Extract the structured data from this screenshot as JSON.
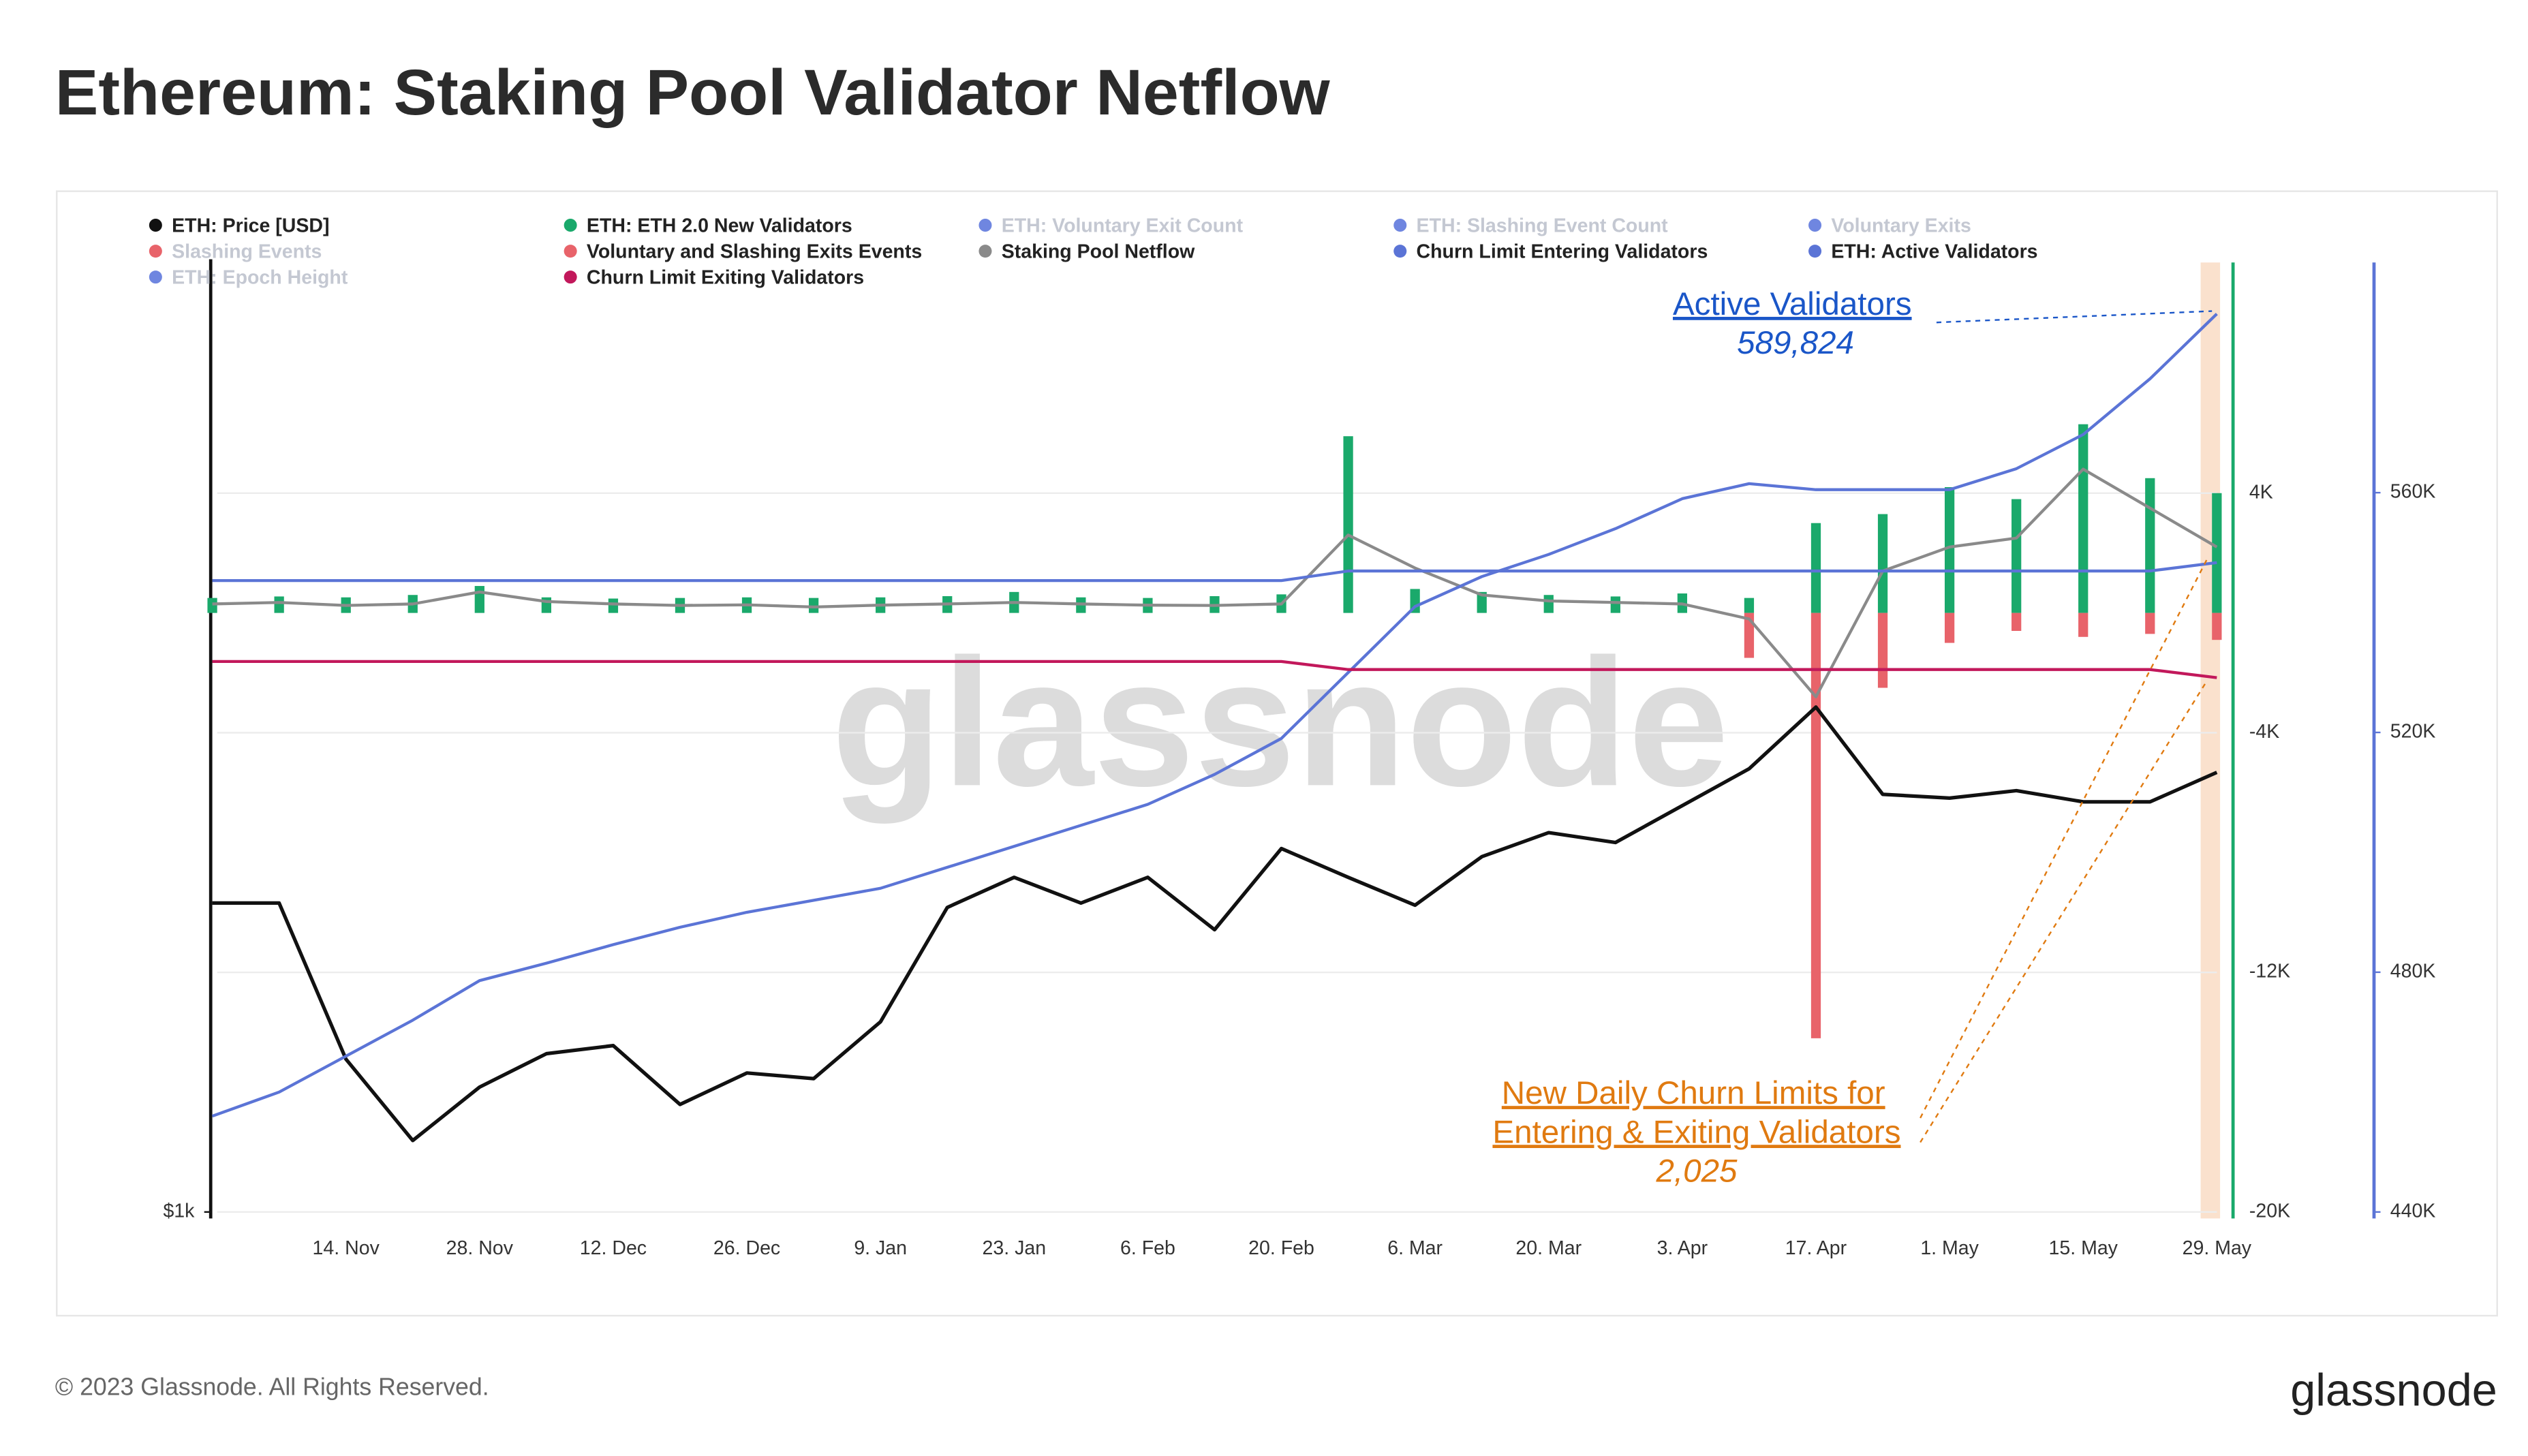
{
  "header": {
    "title": "Ethereum: Staking Pool Validator Netflow"
  },
  "chart_data": {
    "type": "combo",
    "categories": [
      null,
      null,
      "14. Nov",
      null,
      "28. Nov",
      null,
      "12. Dec",
      null,
      "26. Dec",
      null,
      "9. Jan",
      null,
      "23. Jan",
      null,
      "6. Feb",
      null,
      "20. Feb",
      null,
      "6. Mar",
      null,
      "20. Mar",
      null,
      "3. Apr",
      null,
      "17. Apr",
      null,
      "1. May",
      null,
      "15. May",
      null,
      "29. May"
    ],
    "yscale": "log",
    "ylim": [
      1000,
      4000
    ],
    "yticks": [
      {
        "value": 1000,
        "label": "$1k"
      }
    ],
    "y2lim": [
      -20000,
      11700
    ],
    "y2ticks": [
      {
        "value": 4000,
        "label": "4K"
      },
      {
        "value": -4000,
        "label": "-4K"
      },
      {
        "value": -12000,
        "label": "-12K"
      },
      {
        "value": -20000,
        "label": "-20K"
      }
    ],
    "y3lim": [
      440000,
      598400
    ],
    "y3ticks": [
      {
        "value": 560000,
        "label": "560K"
      },
      {
        "value": 520000,
        "label": "520K"
      },
      {
        "value": 480000,
        "label": "480K"
      },
      {
        "value": 440000,
        "label": "440K"
      }
    ],
    "grid": true,
    "series": [
      {
        "name": "ETH: Price [USD]",
        "color": "#111111",
        "type": "line",
        "axis": "y",
        "visible": true,
        "values": [
          1570,
          1570,
          1250,
          1110,
          1200,
          1260,
          1275,
          1170,
          1225,
          1215,
          1320,
          1560,
          1630,
          1570,
          1630,
          1510,
          1700,
          1630,
          1565,
          1680,
          1740,
          1715,
          1810,
          1910,
          2090,
          1840,
          1830,
          1850,
          1820,
          1820,
          1900
        ]
      },
      {
        "name": "ETH: ETH 2.0 New Validators",
        "color": "#1aa96b",
        "type": "bar",
        "axis": "y2",
        "visible": true,
        "values": [
          500,
          550,
          520,
          600,
          900,
          520,
          480,
          500,
          520,
          500,
          520,
          560,
          700,
          520,
          500,
          560,
          620,
          5900,
          800,
          700,
          600,
          550,
          650,
          500,
          3000,
          3300,
          4200,
          3800,
          6300,
          4500,
          4000
        ]
      },
      {
        "name": "ETH: Voluntary Exit Count",
        "color": "#6f86e0",
        "visible": false
      },
      {
        "name": "ETH: Slashing Event Count",
        "color": "#6f86e0",
        "visible": false
      },
      {
        "name": "Voluntary Exits",
        "color": "#6f86e0",
        "visible": false
      },
      {
        "name": "Slashing Events",
        "color": "#e8636a",
        "visible": false
      },
      {
        "name": "Voluntary and Slashing Exits Events",
        "color": "#e8636a",
        "type": "bar",
        "axis": "y2",
        "visible": true,
        "values": [
          0,
          0,
          0,
          0,
          0,
          0,
          0,
          0,
          0,
          0,
          0,
          0,
          0,
          0,
          0,
          0,
          0,
          0,
          0,
          0,
          0,
          0,
          0,
          -1500,
          -14200,
          -2500,
          -1000,
          -600,
          -800,
          -700,
          -900
        ]
      },
      {
        "name": "Staking Pool Netflow",
        "color": "#8a8a8a",
        "type": "line",
        "axis": "y2",
        "visible": true,
        "values": [
          300,
          350,
          250,
          300,
          700,
          380,
          300,
          250,
          270,
          200,
          260,
          300,
          350,
          300,
          260,
          250,
          300,
          2600,
          1500,
          600,
          400,
          350,
          300,
          -200,
          -2800,
          1400,
          2200,
          2500,
          4800,
          3500,
          2200
        ]
      },
      {
        "name": "Churn Limit Entering Validators",
        "color": "#5b74d6",
        "type": "line",
        "axis": "y2",
        "visible": true,
        "values": [
          1080,
          1080,
          1080,
          1080,
          1080,
          1080,
          1080,
          1080,
          1080,
          1080,
          1080,
          1080,
          1080,
          1080,
          1080,
          1080,
          1080,
          1400,
          1400,
          1400,
          1400,
          1400,
          1400,
          1400,
          1400,
          1400,
          1400,
          1400,
          1400,
          1400,
          1680
        ]
      },
      {
        "name": "ETH: Active Validators",
        "color": "#5b74d6",
        "type": "line",
        "axis": "y3",
        "visible": true,
        "values": [
          456000,
          460000,
          466000,
          472000,
          478600,
          481500,
          484600,
          487500,
          490000,
          492000,
          494000,
          497500,
          501000,
          504500,
          508000,
          513000,
          519000,
          530000,
          541000,
          546000,
          549700,
          554000,
          559000,
          561500,
          560500,
          560500,
          560500,
          564000,
          569700,
          579000,
          589824
        ]
      },
      {
        "name": "ETH: Epoch Height",
        "color": "#6f86e0",
        "visible": false
      },
      {
        "name": "Churn Limit Exiting Validators",
        "color": "#c2185b",
        "type": "line",
        "axis": "y2",
        "visible": true,
        "values": [
          -1620,
          -1620,
          -1620,
          -1620,
          -1620,
          -1620,
          -1620,
          -1620,
          -1620,
          -1620,
          -1620,
          -1620,
          -1620,
          -1620,
          -1620,
          -1620,
          -1620,
          -1890,
          -1890,
          -1890,
          -1890,
          -1890,
          -1890,
          -1890,
          -1890,
          -1890,
          -1890,
          -1890,
          -1890,
          -1890,
          -2160
        ]
      }
    ],
    "annotations": [
      {
        "lines": [
          "Active Validators",
          "589,824"
        ],
        "color": "#1a56c8"
      },
      {
        "lines": [
          "New Daily Churn Limits for",
          "Entering & Exiting Validators",
          "2,025"
        ],
        "color": "#e07a10"
      }
    ],
    "watermark": "glassnode"
  },
  "footer": {
    "copyright": "© 2023 Glassnode. All Rights Reserved.",
    "logo": "glassnode"
  }
}
